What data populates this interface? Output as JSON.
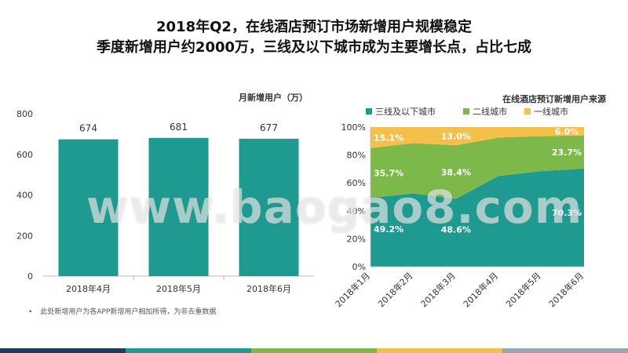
{
  "header": {
    "title_line1": "2018年Q2，在线酒店预订市场新增用户规模稳定",
    "title_line2": "季度新增用户约2000万，三线及以下城市成为主要增长点，占比七成"
  },
  "note": {
    "bullet": "•",
    "text": "此处新增用户为各APP新增用户相加所得，为非去重数据"
  },
  "watermark": "www.baogao8.com",
  "colors": {
    "teal": "#1f9a91",
    "green": "#7cb84a",
    "yellow": "#f5c04a",
    "axis": "#bbbbbb",
    "text": "#333333"
  },
  "chart_data": [
    {
      "type": "bar",
      "title": "月新增用户（万）",
      "categories": [
        "2018年4月",
        "2018年5月",
        "2018年6月"
      ],
      "values": [
        674,
        681,
        677
      ],
      "data_labels": [
        "674",
        "681",
        "677"
      ],
      "ylim": [
        0,
        800
      ],
      "yticks": [
        "0",
        "200",
        "400",
        "600",
        "800"
      ],
      "color": "#1f9a91",
      "grid": false
    },
    {
      "type": "area",
      "stacked": true,
      "title": "在线酒店预订新增用户来源",
      "legend_position": "top",
      "categories": [
        "2018年1月",
        "2018年2月",
        "2018年3月",
        "2018年4月",
        "2018年5月",
        "2018年6月"
      ],
      "ylim": [
        0,
        100
      ],
      "yticks": [
        "0%",
        "20%",
        "40%",
        "60%",
        "80%",
        "100%"
      ],
      "series": [
        {
          "name": "三线及以下城市",
          "color": "#1f9a91",
          "values": [
            49.2,
            52.5,
            48.6,
            65.0,
            68.5,
            70.3
          ]
        },
        {
          "name": "二线城市",
          "color": "#7cb84a",
          "values": [
            35.7,
            36.0,
            38.4,
            27.5,
            25.0,
            23.7
          ]
        },
        {
          "name": "一线城市",
          "color": "#f5c04a",
          "values": [
            15.1,
            11.5,
            13.0,
            7.5,
            6.5,
            6.0
          ]
        }
      ],
      "labels": [
        {
          "series": 0,
          "index": 0,
          "text": "49.2%"
        },
        {
          "series": 0,
          "index": 2,
          "text": "48.6%"
        },
        {
          "series": 0,
          "index": 5,
          "text": "70.3%"
        },
        {
          "series": 1,
          "index": 0,
          "text": "35.7%"
        },
        {
          "series": 1,
          "index": 2,
          "text": "38.4%"
        },
        {
          "series": 1,
          "index": 5,
          "text": "23.7%"
        },
        {
          "series": 2,
          "index": 0,
          "text": "15.1%"
        },
        {
          "series": 2,
          "index": 2,
          "text": "13.0%"
        },
        {
          "series": 2,
          "index": 5,
          "text": "6.0%"
        }
      ]
    }
  ]
}
